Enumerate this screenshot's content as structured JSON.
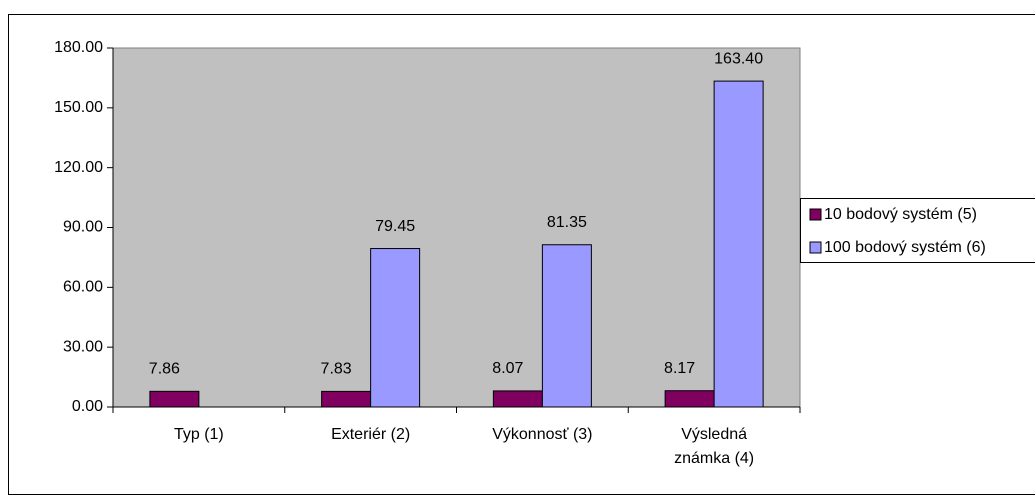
{
  "chart_data": {
    "type": "bar",
    "categories": [
      "Typ (1)",
      "Exteriér (2)",
      "Výkonnosť (3)",
      "Výsledná známka (4)"
    ],
    "series": [
      {
        "name": "10 bodový systém (5)",
        "color": "#800060",
        "values": [
          7.86,
          7.83,
          8.07,
          8.17
        ]
      },
      {
        "name": "100 bodový systém (6)",
        "color": "#9999ff",
        "values": [
          null,
          79.45,
          81.35,
          163.4
        ],
        "value_labels": [
          null,
          "79.45",
          "81.35",
          "163.40"
        ]
      }
    ],
    "ylim": [
      0,
      180
    ],
    "yticks": [
      {
        "value": 0,
        "label": "0.00"
      },
      {
        "value": 30,
        "label": "30.00"
      },
      {
        "value": 60,
        "label": "60.00"
      },
      {
        "value": 90,
        "label": "90.00"
      },
      {
        "value": 120,
        "label": "120.00"
      },
      {
        "value": 150,
        "label": "150.00"
      },
      {
        "value": 180,
        "label": "180.00"
      }
    ],
    "plot_background": "#c0c0c0",
    "legend": "right"
  }
}
